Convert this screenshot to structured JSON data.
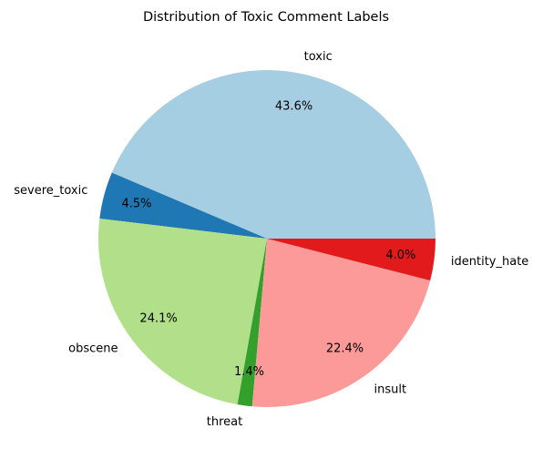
{
  "chart_data": {
    "type": "pie",
    "title": "Distribution of Toxic Comment Labels",
    "start_angle_deg": 0,
    "direction": "counterclockwise",
    "slices": [
      {
        "label": "toxic",
        "value": 43.6,
        "pct_label": "43.6%",
        "color": "#a6cee3"
      },
      {
        "label": "severe_toxic",
        "value": 4.5,
        "pct_label": "4.5%",
        "color": "#1f78b4"
      },
      {
        "label": "obscene",
        "value": 24.1,
        "pct_label": "24.1%",
        "color": "#b2df8a"
      },
      {
        "label": "threat",
        "value": 1.4,
        "pct_label": "1.4%",
        "color": "#33a02c"
      },
      {
        "label": "insult",
        "value": 22.4,
        "pct_label": "22.4%",
        "color": "#fb9a99"
      },
      {
        "label": "identity_hate",
        "value": 4.0,
        "pct_label": "4.0%",
        "color": "#e31a1c"
      }
    ]
  }
}
